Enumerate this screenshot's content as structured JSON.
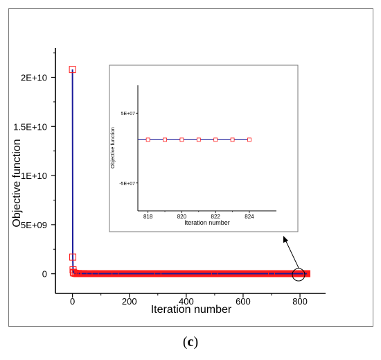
{
  "chart_data": [
    {
      "type": "line",
      "title": "",
      "xlabel": "Iteration number",
      "ylabel": "Objective function",
      "xlim": [
        -60,
        890
      ],
      "ylim": [
        -2000000000,
        23000000000
      ],
      "xticks": [
        0,
        200,
        400,
        600,
        800
      ],
      "xtick_labels": [
        "0",
        "200",
        "400",
        "600",
        "800"
      ],
      "yticks": [
        0,
        5000000000,
        10000000000,
        15000000000,
        20000000000
      ],
      "ytick_labels": [
        "0",
        "5E+09",
        "1E+10",
        "1.5E+10",
        "2E+10"
      ],
      "grid": false,
      "line_color": "#1a1a9a",
      "marker_color": "#ff1a1a",
      "marker": "open-square",
      "series": [
        {
          "x": [
            0,
            1,
            2,
            3,
            5,
            10,
            20,
            40,
            80,
            150,
            300,
            500,
            700,
            824
          ],
          "values": [
            20800000000,
            1700000000,
            400000000,
            150000000,
            80000000,
            50000000,
            30000000,
            20000000,
            15000000,
            13000000,
            12000000,
            12000000,
            12000000,
            12000000
          ]
        }
      ],
      "annotations": [
        "circle around final iterations with arrow pointing to inset"
      ]
    },
    {
      "type": "line",
      "title": "",
      "xlabel": "Iteration number",
      "ylabel": "Objective function",
      "xlim": [
        817.4,
        825.6
      ],
      "ylim": [
        -90000000,
        90000000
      ],
      "xticks": [
        818,
        820,
        822,
        824
      ],
      "xtick_labels": [
        "818",
        "820",
        "822",
        "824"
      ],
      "yticks": [
        50000000,
        -50000000
      ],
      "ytick_labels": [
        "5E+07",
        "-5E+07"
      ],
      "grid": false,
      "series": [
        {
          "x": [
            818,
            819,
            820,
            821,
            822,
            823,
            824
          ],
          "values": [
            12000000,
            12000000,
            12000000,
            12000000,
            12000000,
            12000000,
            12000000
          ]
        }
      ]
    }
  ],
  "caption": {
    "open": "(",
    "letter": "c",
    "close": ")"
  }
}
